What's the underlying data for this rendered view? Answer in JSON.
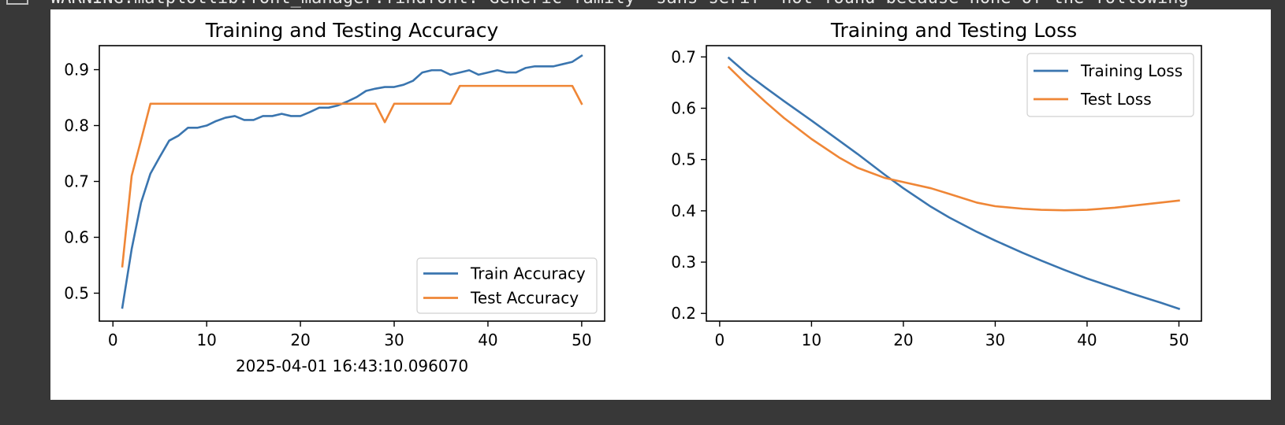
{
  "warning_text": "WARNING:matplotlib.font_manager:findfont: Generic family 'sans-serif' not found because none of the following",
  "chart_data": [
    {
      "type": "line",
      "title": "Training and Testing Accuracy",
      "xlabel": "2025-04-01 16:43:10.096070",
      "ylabel": "",
      "xlim": [
        -1.45,
        52.45
      ],
      "ylim": [
        0.45,
        0.943
      ],
      "xticks": [
        0,
        10,
        20,
        30,
        40,
        50
      ],
      "yticks": [
        0.5,
        0.6,
        0.7,
        0.8,
        0.9
      ],
      "xtick_labels": [
        "0",
        "10",
        "20",
        "30",
        "40",
        "50"
      ],
      "ytick_labels": [
        "0.5",
        "0.6",
        "0.7",
        "0.8",
        "0.9"
      ],
      "legend_position": "lower-right",
      "x": [
        1,
        2,
        3,
        4,
        5,
        6,
        7,
        8,
        9,
        10,
        11,
        12,
        13,
        14,
        15,
        16,
        17,
        18,
        19,
        20,
        21,
        22,
        23,
        24,
        25,
        26,
        27,
        28,
        29,
        30,
        31,
        32,
        33,
        34,
        35,
        36,
        37,
        38,
        39,
        40,
        41,
        42,
        43,
        44,
        45,
        46,
        47,
        48,
        49,
        50
      ],
      "series": [
        {
          "name": "Train Accuracy",
          "color": "#3a75af",
          "values": [
            0.474,
            0.579,
            0.662,
            0.714,
            0.744,
            0.773,
            0.782,
            0.796,
            0.796,
            0.8,
            0.808,
            0.814,
            0.817,
            0.81,
            0.81,
            0.817,
            0.817,
            0.821,
            0.817,
            0.817,
            0.824,
            0.832,
            0.832,
            0.836,
            0.843,
            0.851,
            0.862,
            0.866,
            0.869,
            0.869,
            0.873,
            0.88,
            0.895,
            0.899,
            0.899,
            0.891,
            0.895,
            0.899,
            0.891,
            0.895,
            0.899,
            0.895,
            0.895,
            0.903,
            0.906,
            0.906,
            0.906,
            0.91,
            0.914,
            0.925
          ]
        },
        {
          "name": "Test Accuracy",
          "color": "#ef8636",
          "values": [
            0.548,
            0.71,
            0.774,
            0.839,
            0.839,
            0.839,
            0.839,
            0.839,
            0.839,
            0.839,
            0.839,
            0.839,
            0.839,
            0.839,
            0.839,
            0.839,
            0.839,
            0.839,
            0.839,
            0.839,
            0.839,
            0.839,
            0.839,
            0.839,
            0.839,
            0.839,
            0.839,
            0.839,
            0.806,
            0.839,
            0.839,
            0.839,
            0.839,
            0.839,
            0.839,
            0.839,
            0.871,
            0.871,
            0.871,
            0.871,
            0.871,
            0.871,
            0.871,
            0.871,
            0.871,
            0.871,
            0.871,
            0.871,
            0.871,
            0.839
          ]
        }
      ]
    },
    {
      "type": "line",
      "title": "Training and Testing Loss",
      "xlabel": "",
      "ylabel": "",
      "xlim": [
        -1.45,
        52.45
      ],
      "ylim": [
        0.185,
        0.722
      ],
      "xticks": [
        0,
        10,
        20,
        30,
        40,
        50
      ],
      "yticks": [
        0.2,
        0.3,
        0.4,
        0.5,
        0.6,
        0.7
      ],
      "xtick_labels": [
        "0",
        "10",
        "20",
        "30",
        "40",
        "50"
      ],
      "ytick_labels": [
        "0.2",
        "0.3",
        "0.4",
        "0.5",
        "0.6",
        "0.7"
      ],
      "legend_position": "upper-right",
      "x": [
        1,
        3,
        5,
        7,
        10,
        13,
        15,
        18,
        20,
        23,
        25,
        28,
        30,
        33,
        35,
        37.5,
        40,
        43,
        45,
        48,
        50
      ],
      "series": [
        {
          "name": "Training Loss",
          "color": "#3a75af",
          "values": [
            0.698,
            0.667,
            0.64,
            0.614,
            0.576,
            0.537,
            0.511,
            0.47,
            0.444,
            0.408,
            0.387,
            0.359,
            0.342,
            0.318,
            0.303,
            0.285,
            0.268,
            0.25,
            0.238,
            0.221,
            0.209
          ]
        },
        {
          "name": "Test Loss",
          "color": "#ef8636",
          "values": [
            0.68,
            0.645,
            0.612,
            0.581,
            0.54,
            0.504,
            0.484,
            0.464,
            0.456,
            0.444,
            0.433,
            0.416,
            0.409,
            0.404,
            0.402,
            0.401,
            0.402,
            0.406,
            0.41,
            0.416,
            0.42
          ]
        }
      ]
    }
  ]
}
